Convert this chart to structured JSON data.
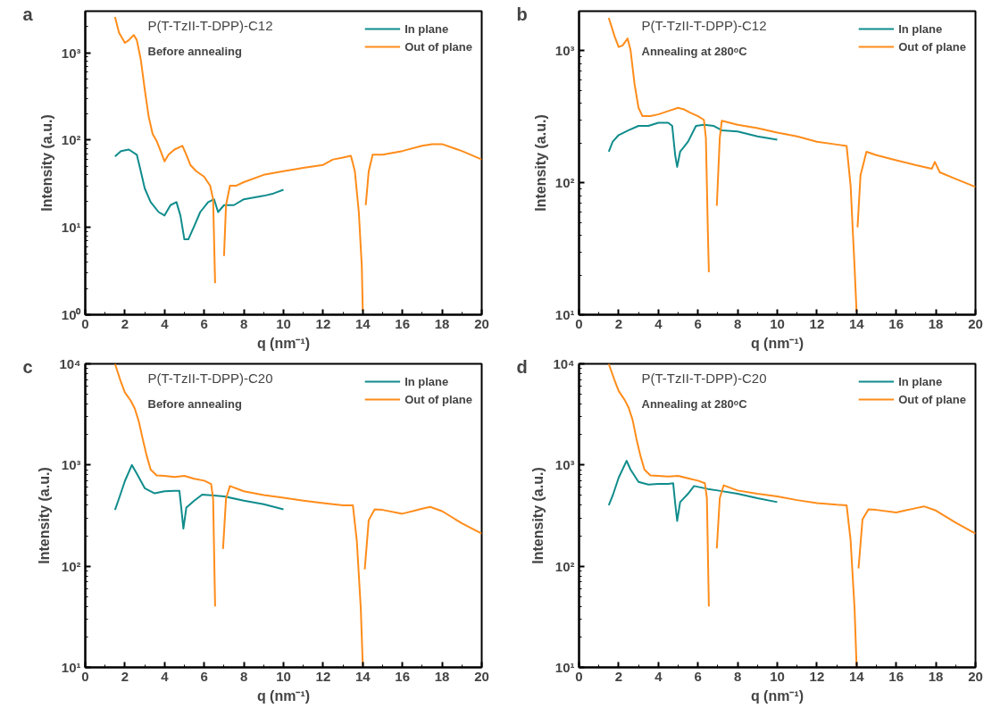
{
  "chart_data": [
    {
      "type": "line",
      "title": "a",
      "xlabel": "q (nm⁻¹)",
      "ylabel": "Intensity (a.u.)",
      "log": "y",
      "grid": false,
      "legend": "top right",
      "annotations": [
        "P(T-TzII-T-DPP)-C12",
        "Before annealing"
      ],
      "xlim": [
        0,
        20
      ],
      "xticks": [
        0,
        2,
        4,
        6,
        8,
        10,
        12,
        14,
        16,
        18,
        20
      ],
      "ylim": [
        1,
        3000
      ],
      "yticks": [
        {
          "value": 1,
          "label": "10⁰"
        },
        {
          "value": 10,
          "label": "10¹"
        },
        {
          "value": 100,
          "label": "10²"
        },
        {
          "value": 1000,
          "label": "10³"
        }
      ],
      "series": [
        {
          "name": "In plane",
          "color": "#108c8c",
          "x": [
            1.5,
            1.8,
            2.2,
            2.6,
            2.8,
            3.0,
            3.3,
            3.7,
            4.0,
            4.3,
            4.6,
            4.8,
            5.0,
            5.2,
            5.5,
            5.8,
            6.2,
            6.5,
            6.7,
            7.0,
            7.5,
            8.0,
            8.5,
            9.0,
            9.5,
            10.0
          ],
          "values": [
            65,
            75,
            78,
            68,
            44,
            28,
            19.5,
            15,
            13.7,
            18,
            19.5,
            13.7,
            7.3,
            7.3,
            10.4,
            15,
            19.5,
            21,
            15,
            18,
            18,
            21,
            22,
            23,
            24.5,
            27
          ]
        },
        {
          "name": "Out of plane",
          "color": "#ff8c1a",
          "x": [
            1.5,
            1.7,
            2.0,
            2.2,
            2.45,
            2.6,
            2.8,
            3.0,
            3.2,
            3.4,
            3.6,
            3.8,
            4.0,
            4.2,
            4.5,
            4.9,
            5.1,
            5.3,
            5.6,
            6.0,
            6.3,
            6.45,
            6.55,
            6.7,
            7.0,
            7.1,
            7.3,
            7.6,
            8.0,
            9.0,
            10.0,
            11.0,
            12.0,
            12.5,
            13.0,
            13.4,
            13.6,
            13.8,
            13.95,
            14.0,
            14.08,
            14.15,
            14.3,
            14.5,
            15.0,
            16.0,
            17.0,
            17.5,
            18.0,
            19.0,
            20.0
          ],
          "values": [
            2570,
            1700,
            1300,
            1400,
            1600,
            1400,
            840,
            380,
            185,
            117,
            98,
            75,
            57,
            68,
            78,
            86,
            68,
            52,
            44,
            38,
            30,
            21,
            2.3,
            null,
            4.7,
            18,
            30,
            30,
            33,
            40,
            44,
            48,
            52,
            60,
            63,
            66,
            44,
            15,
            3.6,
            1.1,
            null,
            18,
            44,
            68,
            68,
            75,
            86,
            90,
            90,
            75,
            60
          ]
        }
      ]
    },
    {
      "type": "line",
      "title": "b",
      "xlabel": "q (nm⁻¹)",
      "ylabel": "Intensity (a.u.)",
      "log": "y",
      "grid": false,
      "legend": "top right",
      "annotations": [
        "P(T-TzII-T-DPP)-C12",
        "Annealing at 280ᵒC"
      ],
      "xlim": [
        0,
        20
      ],
      "xticks": [
        0,
        2,
        4,
        6,
        8,
        10,
        12,
        14,
        16,
        18,
        20
      ],
      "ylim": [
        10,
        2000
      ],
      "yticks": [
        {
          "value": 10,
          "label": "10¹"
        },
        {
          "value": 100,
          "label": "10²"
        },
        {
          "value": 1000,
          "label": "10³"
        }
      ],
      "series": [
        {
          "name": "In plane",
          "color": "#108c8c",
          "x": [
            1.5,
            1.7,
            2.0,
            2.5,
            3.0,
            3.5,
            4.0,
            4.5,
            4.7,
            4.85,
            4.95,
            5.1,
            5.5,
            5.9,
            6.3,
            6.8,
            7.2,
            8.0,
            9.0,
            10.0
          ],
          "values": [
            172,
            205,
            230,
            250,
            270,
            270,
            285,
            285,
            270,
            162,
            132,
            172,
            205,
            270,
            275,
            270,
            250,
            245,
            225,
            212
          ]
        },
        {
          "name": "Out of plane",
          "color": "#ff8c1a",
          "x": [
            1.5,
            1.8,
            2.0,
            2.2,
            2.45,
            2.6,
            2.8,
            3.0,
            3.2,
            3.6,
            4.0,
            4.5,
            5.0,
            5.3,
            5.6,
            6.0,
            6.3,
            6.4,
            6.5,
            6.55,
            6.7,
            6.95,
            7.1,
            7.2,
            8.0,
            9.0,
            10.0,
            11.0,
            12.0,
            13.0,
            13.5,
            13.7,
            13.9,
            14.0,
            14.03,
            14.05,
            14.2,
            14.5,
            15.0,
            16.0,
            17.0,
            17.8,
            17.95,
            18.2,
            19.0,
            20.0
          ],
          "values": [
            1780,
            1280,
            1070,
            1100,
            1240,
            1010,
            560,
            370,
            320,
            320,
            330,
            350,
            370,
            360,
            340,
            320,
            300,
            218,
            42,
            21,
            null,
            67,
            218,
            295,
            275,
            260,
            240,
            225,
            205,
            195,
            190,
            95,
            23,
            10.5,
            null,
            46,
            114,
            172,
            162,
            148,
            136,
            128,
            144,
            120,
            107,
            93
          ]
        }
      ]
    },
    {
      "type": "line",
      "title": "c",
      "xlabel": "q (nm⁻¹)",
      "ylabel": "Intensity (a.u.)",
      "log": "y",
      "grid": false,
      "legend": "top right",
      "annotations": [
        "P(T-TzII-T-DPP)-C20",
        "Before annealing"
      ],
      "xlim": [
        0,
        20
      ],
      "xticks": [
        0,
        2,
        4,
        6,
        8,
        10,
        12,
        14,
        16,
        18,
        20
      ],
      "ylim": [
        10,
        10000
      ],
      "yticks": [
        {
          "value": 10,
          "label": "10¹"
        },
        {
          "value": 100,
          "label": "10²"
        },
        {
          "value": 1000,
          "label": "10³"
        },
        {
          "value": 10000,
          "label": "10⁴"
        }
      ],
      "series": [
        {
          "name": "In plane",
          "color": "#108c8c",
          "x": [
            1.5,
            1.7,
            2.0,
            2.35,
            2.6,
            3.0,
            3.5,
            4.0,
            4.5,
            4.75,
            4.85,
            4.95,
            5.1,
            5.5,
            5.9,
            6.5,
            7.0,
            8.0,
            9.0,
            10.0
          ],
          "values": [
            360,
            465,
            695,
            1000,
            820,
            590,
            525,
            550,
            555,
            555,
            365,
            235,
            380,
            445,
            510,
            500,
            490,
            445,
            410,
            365
          ]
        },
        {
          "name": "Out of plane",
          "color": "#ff8c1a",
          "x": [
            1.5,
            1.8,
            2.0,
            2.3,
            2.5,
            2.7,
            2.9,
            3.1,
            3.3,
            3.6,
            4.0,
            4.5,
            5.0,
            5.5,
            6.0,
            6.35,
            6.45,
            6.55,
            6.75,
            6.95,
            7.1,
            7.3,
            8.0,
            9.0,
            10.0,
            11.0,
            12.0,
            13.0,
            13.5,
            13.7,
            13.9,
            14.0,
            14.05,
            14.1,
            14.3,
            14.6,
            15.0,
            16.0,
            17.0,
            17.4,
            18.0,
            19.0,
            20.0
          ],
          "values": [
            10000,
            6600,
            5200,
            4300,
            3600,
            2700,
            1800,
            1230,
            900,
            790,
            780,
            760,
            780,
            730,
            700,
            650,
            465,
            40,
            null,
            148,
            465,
            620,
            550,
            505,
            475,
            445,
            420,
            400,
            400,
            178,
            38,
            10.4,
            null,
            93,
            285,
            365,
            360,
            330,
            370,
            385,
            350,
            265,
            210
          ]
        }
      ]
    },
    {
      "type": "line",
      "title": "d",
      "xlabel": "q (nm⁻¹)",
      "ylabel": "Intensity (a.u.)",
      "log": "y",
      "grid": false,
      "legend": "top right",
      "annotations": [
        "P(T-TzII-T-DPP)-C20",
        "Annealing at 280ᵒC"
      ],
      "xlim": [
        0,
        20
      ],
      "xticks": [
        0,
        2,
        4,
        6,
        8,
        10,
        12,
        14,
        16,
        18,
        20
      ],
      "ylim": [
        10,
        10000
      ],
      "yticks": [
        {
          "value": 10,
          "label": "10¹"
        },
        {
          "value": 100,
          "label": "10²"
        },
        {
          "value": 1000,
          "label": "10³"
        },
        {
          "value": 10000,
          "label": "10⁴"
        }
      ],
      "series": [
        {
          "name": "In plane",
          "color": "#108c8c",
          "x": [
            1.5,
            1.7,
            2.0,
            2.4,
            2.6,
            3.0,
            3.5,
            4.0,
            4.5,
            4.75,
            4.85,
            4.95,
            5.1,
            5.5,
            5.8,
            6.5,
            7.0,
            8.0,
            9.0,
            10.0
          ],
          "values": [
            400,
            500,
            750,
            1100,
            900,
            680,
            640,
            650,
            650,
            660,
            420,
            280,
            430,
            520,
            620,
            580,
            560,
            520,
            470,
            430
          ]
        },
        {
          "name": "Out of plane",
          "color": "#ff8c1a",
          "x": [
            1.5,
            1.8,
            2.0,
            2.3,
            2.5,
            2.7,
            2.9,
            3.1,
            3.3,
            3.6,
            4.0,
            4.5,
            5.0,
            5.5,
            6.0,
            6.35,
            6.45,
            6.55,
            6.75,
            6.95,
            7.1,
            7.3,
            8.0,
            9.0,
            10.0,
            11.0,
            12.0,
            13.0,
            13.5,
            13.7,
            13.9,
            14.0,
            14.05,
            14.1,
            14.3,
            14.6,
            15.0,
            16.0,
            17.0,
            17.4,
            18.0,
            19.0,
            20.0
          ],
          "values": [
            10000,
            6800,
            5400,
            4400,
            3700,
            2800,
            1800,
            1230,
            900,
            790,
            780,
            770,
            780,
            740,
            700,
            660,
            470,
            40,
            null,
            150,
            470,
            630,
            560,
            520,
            490,
            450,
            420,
            405,
            400,
            180,
            38,
            10.4,
            null,
            95,
            290,
            365,
            360,
            340,
            375,
            390,
            355,
            270,
            210
          ]
        }
      ]
    }
  ]
}
